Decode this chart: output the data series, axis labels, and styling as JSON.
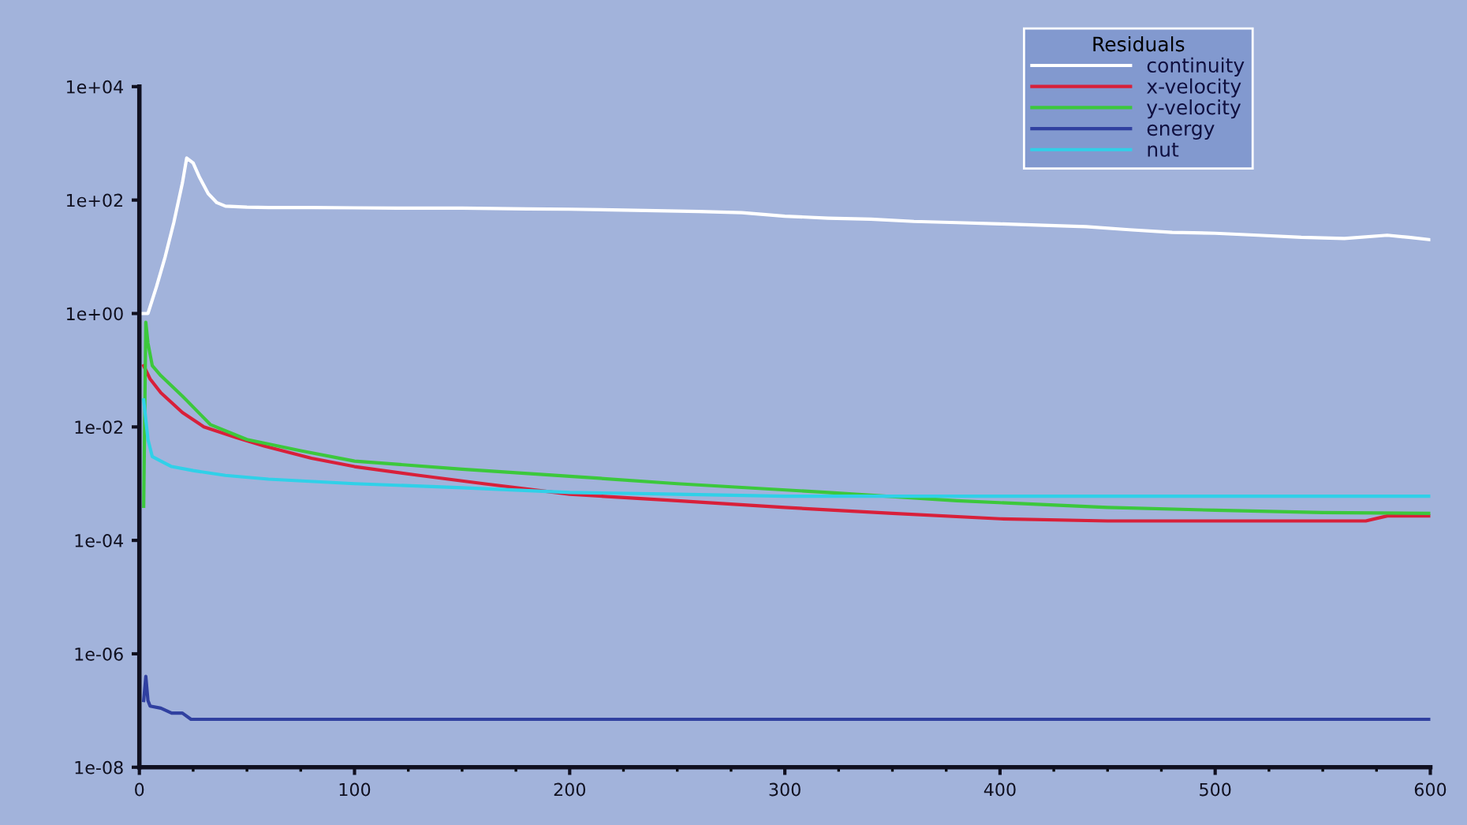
{
  "chart_data": {
    "type": "line",
    "log": "y",
    "legend": "top right",
    "legend_title": "Residuals",
    "grid": false,
    "xlim": [
      0,
      600
    ],
    "ylim": [
      1e-08,
      10000.0
    ],
    "xticks": [
      0,
      100,
      200,
      300,
      400,
      500,
      600
    ],
    "yticks": [
      {
        "value": 1e-08,
        "label": "1e-08"
      },
      {
        "value": 1e-06,
        "label": "1e-06"
      },
      {
        "value": 0.0001,
        "label": "1e-04"
      },
      {
        "value": 0.01,
        "label": "1e-02"
      },
      {
        "value": 1,
        "label": "1e+00"
      },
      {
        "value": 100,
        "label": "1e+02"
      },
      {
        "value": 10000,
        "label": "1e+04"
      }
    ],
    "series": [
      {
        "name": "continuity",
        "color": "#ffffff",
        "x": [
          1,
          4,
          8,
          12,
          16,
          20,
          22,
          25,
          28,
          32,
          36,
          40,
          50,
          60,
          80,
          100,
          120,
          150,
          180,
          200,
          230,
          260,
          280,
          300,
          320,
          340,
          360,
          380,
          400,
          420,
          440,
          460,
          480,
          500,
          520,
          540,
          560,
          580,
          590,
          600
        ],
        "values": [
          1,
          1,
          3,
          10,
          40,
          200,
          550,
          450,
          250,
          130,
          90,
          78,
          75,
          74,
          74,
          73,
          72,
          72,
          70,
          69,
          66,
          63,
          60,
          52,
          48,
          46,
          42,
          40,
          38,
          36,
          34,
          30,
          27,
          26,
          24,
          22,
          21,
          24,
          22,
          20
        ]
      },
      {
        "name": "x-velocity",
        "color": "#d8203a",
        "x": [
          2,
          5,
          10,
          20,
          30,
          45,
          58,
          80,
          100,
          130,
          160,
          200,
          250,
          300,
          350,
          400,
          450,
          500,
          550,
          570,
          580,
          600
        ],
        "values": [
          0.12,
          0.07,
          0.04,
          0.018,
          0.01,
          0.0065,
          0.0046,
          0.0028,
          0.002,
          0.0014,
          0.001,
          0.00065,
          0.0005,
          0.00038,
          0.0003,
          0.00024,
          0.00022,
          0.00022,
          0.00022,
          0.00022,
          0.00027,
          0.00027
        ]
      },
      {
        "name": "y-velocity",
        "color": "#3cc83c",
        "x": [
          2,
          3,
          4,
          6,
          10,
          20,
          33,
          50,
          75,
          100,
          150,
          200,
          250,
          320,
          380,
          450,
          500,
          550,
          600
        ],
        "values": [
          0.0004,
          0.7,
          0.3,
          0.12,
          0.08,
          0.035,
          0.011,
          0.006,
          0.0038,
          0.0025,
          0.0018,
          0.00135,
          0.001,
          0.0007,
          0.0005,
          0.00038,
          0.00034,
          0.00031,
          0.0003
        ]
      },
      {
        "name": "energy",
        "color": "#3040a0",
        "x": [
          2,
          3,
          4,
          5,
          10,
          15,
          20,
          24,
          100,
          300,
          600
        ],
        "values": [
          1.5e-07,
          4e-07,
          1.5e-07,
          1.2e-07,
          1.1e-07,
          9e-08,
          9e-08,
          7e-08,
          7e-08,
          7e-08,
          7e-08
        ]
      },
      {
        "name": "nut",
        "color": "#30d0e8",
        "x": [
          2,
          4,
          6,
          10,
          15,
          25,
          40,
          60,
          100,
          150,
          200,
          250,
          300,
          400,
          500,
          600
        ],
        "values": [
          0.03,
          0.006,
          0.003,
          0.0025,
          0.002,
          0.0017,
          0.0014,
          0.0012,
          0.001,
          0.00085,
          0.0007,
          0.00065,
          0.0006,
          0.0006,
          0.0006,
          0.0006
        ]
      }
    ]
  }
}
